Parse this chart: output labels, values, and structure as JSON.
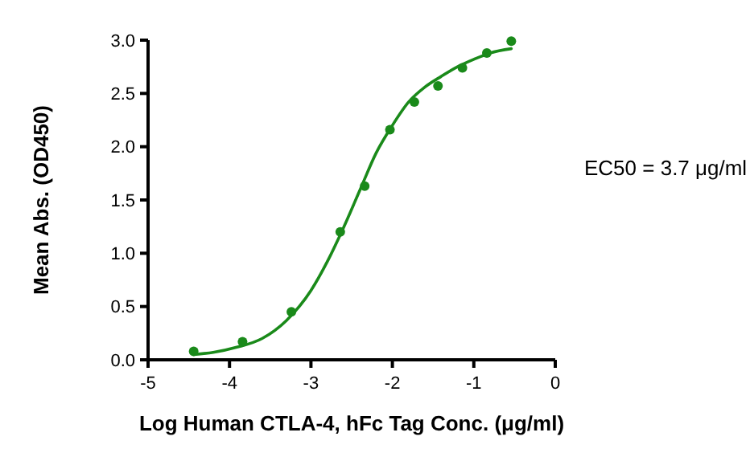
{
  "chart_data": {
    "type": "scatter",
    "xlabel": "Log Human CTLA-4, hFc Tag Conc. (μg/ml)",
    "ylabel": "Mean Abs. (OD450)",
    "annotations": [
      "EC50 = 3.7 μg/ml"
    ],
    "xlim": [
      -5,
      0
    ],
    "xticks": [
      -5,
      -4,
      -3,
      -2,
      -1,
      0
    ],
    "ylim": [
      0,
      3
    ],
    "yticks": [
      {
        "value": 0,
        "label": "0.0"
      },
      {
        "value": 0.5,
        "label": "0.5"
      },
      {
        "value": 1,
        "label": "1.0"
      },
      {
        "value": 1.5,
        "label": "1.5"
      },
      {
        "value": 2,
        "label": "2.0"
      },
      {
        "value": 2.5,
        "label": "2.5"
      },
      {
        "value": 3,
        "label": "3.0"
      }
    ],
    "series": [
      {
        "marker": "circle",
        "color": "#1a8a1a",
        "x": [
          -4.44,
          -3.84,
          -3.24,
          -2.64,
          -2.34,
          -2.03,
          -1.73,
          -1.44,
          -1.14,
          -0.84,
          -0.54
        ],
        "values": [
          0.08,
          0.17,
          0.45,
          1.2,
          1.63,
          2.16,
          2.42,
          2.57,
          2.74,
          2.88,
          2.99
        ]
      },
      {
        "type": "line",
        "color": "#1a8a1a",
        "x": [
          -4.44,
          -4.2,
          -3.9,
          -3.6,
          -3.3,
          -3.0,
          -2.8,
          -2.6,
          -2.4,
          -2.2,
          -2.0,
          -1.8,
          -1.6,
          -1.4,
          -1.2,
          -1.0,
          -0.8,
          -0.54
        ],
        "values": [
          0.05,
          0.07,
          0.12,
          0.2,
          0.37,
          0.65,
          0.92,
          1.24,
          1.59,
          1.94,
          2.2,
          2.42,
          2.56,
          2.66,
          2.75,
          2.82,
          2.88,
          2.92
        ]
      }
    ]
  }
}
